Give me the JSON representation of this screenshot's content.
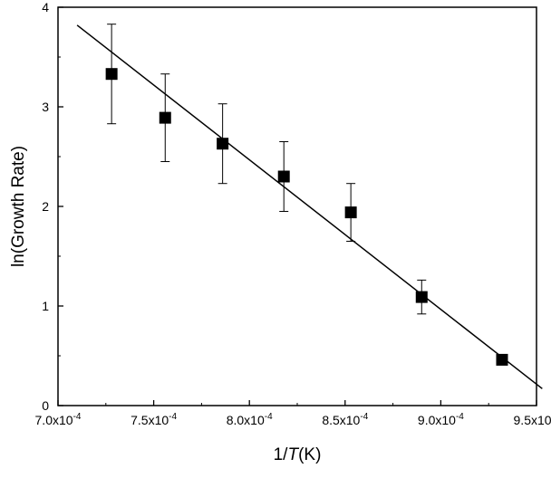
{
  "chart_data": {
    "type": "scatter",
    "xlabel_prefix": "1/",
    "xlabel_var": "T",
    "xlabel_suffix": "(K)",
    "ylabel": "ln(Growth Rate)",
    "xlim": [
      0.0007,
      0.00095
    ],
    "ylim": [
      0,
      4
    ],
    "grid": false,
    "legend": "none",
    "x_ticks": [
      {
        "value": 0.0007,
        "mantissa": "7.0x10",
        "exponent": "-4"
      },
      {
        "value": 0.00075,
        "mantissa": "7.5x10",
        "exponent": "-4"
      },
      {
        "value": 0.0008,
        "mantissa": "8.0x10",
        "exponent": "-4"
      },
      {
        "value": 0.00085,
        "mantissa": "8.5x10",
        "exponent": "-4"
      },
      {
        "value": 0.0009,
        "mantissa": "9.0x10",
        "exponent": "-4"
      },
      {
        "value": 0.00095,
        "mantissa": "9.5x10",
        "exponent": "-4"
      }
    ],
    "y_ticks": [
      {
        "value": 0,
        "label": "0"
      },
      {
        "value": 1,
        "label": "1"
      },
      {
        "value": 2,
        "label": "2"
      },
      {
        "value": 3,
        "label": "3"
      },
      {
        "value": 4,
        "label": "4"
      }
    ],
    "series": [
      {
        "points": [
          {
            "x": 0.000728,
            "y": 3.33,
            "err": 0.5
          },
          {
            "x": 0.000756,
            "y": 2.89,
            "err": 0.44
          },
          {
            "x": 0.000786,
            "y": 2.63,
            "err": 0.4
          },
          {
            "x": 0.000818,
            "y": 2.3,
            "err": 0.35
          },
          {
            "x": 0.000853,
            "y": 1.94,
            "err": 0.29
          },
          {
            "x": 0.00089,
            "y": 1.09,
            "err": 0.17
          },
          {
            "x": 0.000932,
            "y": 0.46,
            "err": 0.04
          }
        ]
      }
    ],
    "fit_line": {
      "x": [
        0.00071,
        0.000953
      ],
      "y": [
        3.82,
        0.17
      ]
    },
    "colors": {
      "marker": "#000000",
      "line": "#000000",
      "axis": "#000000"
    }
  }
}
